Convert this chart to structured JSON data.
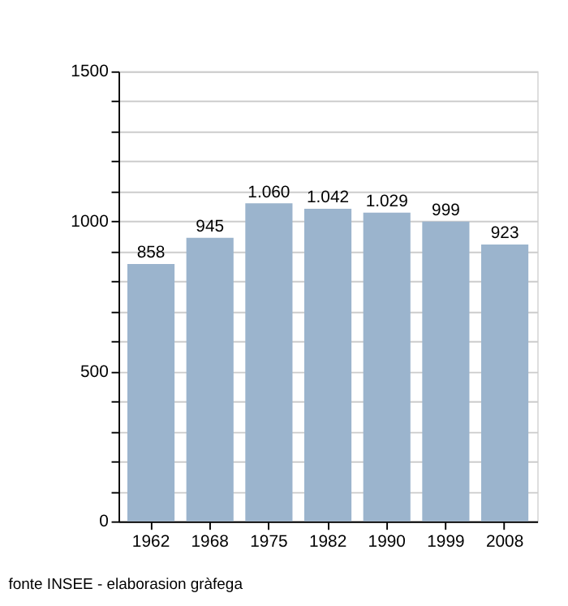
{
  "chart_data": {
    "type": "bar",
    "categories": [
      "1962",
      "1968",
      "1975",
      "1982",
      "1990",
      "1999",
      "2008"
    ],
    "values": [
      858,
      945,
      1060,
      1042,
      1029,
      999,
      923
    ],
    "value_labels": [
      "858",
      "945",
      "1.060",
      "1.042",
      "1.029",
      "999",
      "923"
    ],
    "color": "#9bb4cd",
    "ylim": [
      0,
      1500
    ],
    "yticks": [
      0,
      {
        "value": 100,
        "label": null
      },
      {
        "value": 200,
        "label": null
      },
      {
        "value": 300,
        "label": null
      },
      {
        "value": 400,
        "label": null
      },
      500,
      {
        "value": 600,
        "label": null
      },
      {
        "value": 700,
        "label": null
      },
      {
        "value": 800,
        "label": null
      },
      {
        "value": 900,
        "label": null
      },
      1000,
      {
        "value": 1100,
        "label": null
      },
      {
        "value": 1200,
        "label": null
      },
      {
        "value": 1300,
        "label": null
      },
      {
        "value": 1400,
        "label": null
      },
      1500
    ],
    "grid": "y",
    "annotations": [
      "fonte INSEE - elaborasion gràfega"
    ]
  }
}
